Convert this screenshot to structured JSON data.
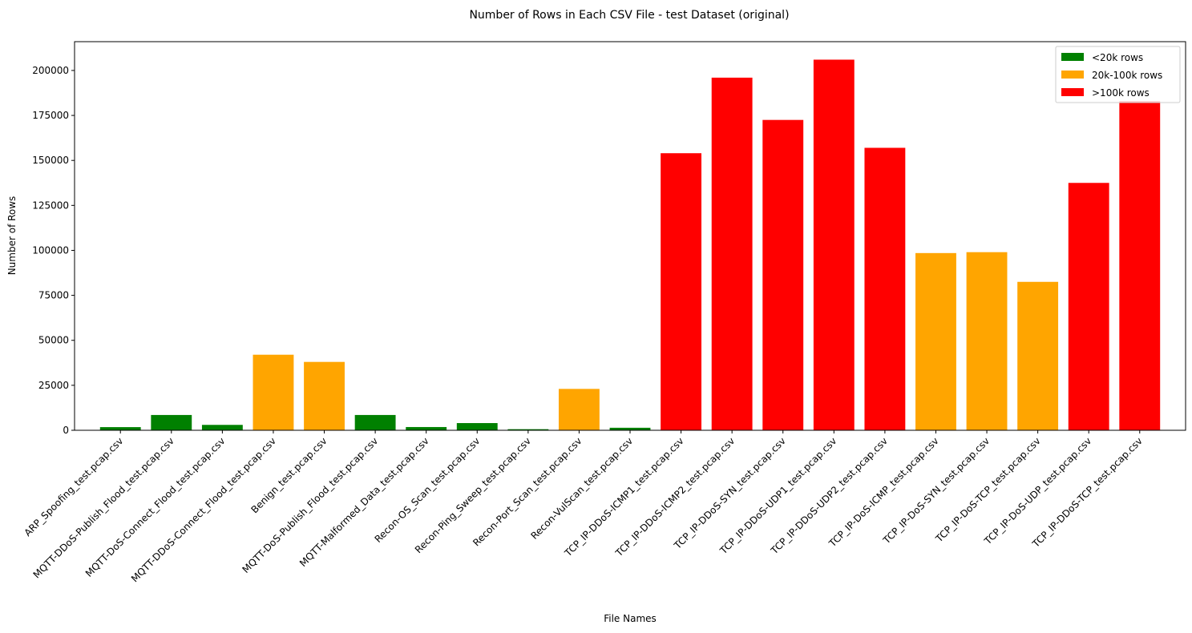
{
  "chart_data": {
    "type": "bar",
    "title": "Number of Rows in Each CSV File - test Dataset (original)",
    "xlabel": "File Names",
    "ylabel": "Number of Rows",
    "ylim": [
      0,
      216000
    ],
    "yticks": [
      0,
      25000,
      50000,
      75000,
      100000,
      125000,
      150000,
      175000,
      200000
    ],
    "grid": false,
    "legend_position": "top-right",
    "colors": {
      "low": "#008000",
      "mid": "#ffa500",
      "high": "#ff0000"
    },
    "legend": [
      {
        "label": "<20k rows",
        "color": "#008000"
      },
      {
        "label": "20k-100k rows",
        "color": "#ffa500"
      },
      {
        "label": ">100k rows",
        "color": "#ff0000"
      }
    ],
    "categories": [
      "ARP_Spoofing_test.pcap.csv",
      "MQTT-DDoS-Publish_Flood_test.pcap.csv",
      "MQTT-DoS-Connect_Flood_test.pcap.csv",
      "MQTT-DDoS-Connect_Flood_test.pcap.csv",
      "Benign_test.pcap.csv",
      "MQTT-DoS-Publish_Flood_test.pcap.csv",
      "MQTT-Malformed_Data_test.pcap.csv",
      "Recon-OS_Scan_test.pcap.csv",
      "Recon-Ping_Sweep_test.pcap.csv",
      "Recon-Port_Scan_test.pcap.csv",
      "Recon-VulScan_test.pcap.csv",
      "TCP_IP-DDoS-ICMP1_test.pcap.csv",
      "TCP_IP-DDoS-ICMP2_test.pcap.csv",
      "TCP_IP-DDoS-SYN_test.pcap.csv",
      "TCP_IP-DDoS-UDP1_test.pcap.csv",
      "TCP_IP-DDoS-UDP2_test.pcap.csv",
      "TCP_IP-DoS-ICMP_test.pcap.csv",
      "TCP_IP-DoS-SYN_test.pcap.csv",
      "TCP_IP-DoS-TCP_test.pcap.csv",
      "TCP_IP-DoS-UDP_test.pcap.csv",
      "TCP_IP-DDoS-TCP_test.pcap.csv"
    ],
    "values": [
      1750,
      8500,
      3000,
      42000,
      38000,
      8500,
      1800,
      4000,
      600,
      23000,
      1400,
      154000,
      196000,
      172500,
      206000,
      157000,
      98500,
      99000,
      82500,
      137500,
      183000
    ]
  }
}
